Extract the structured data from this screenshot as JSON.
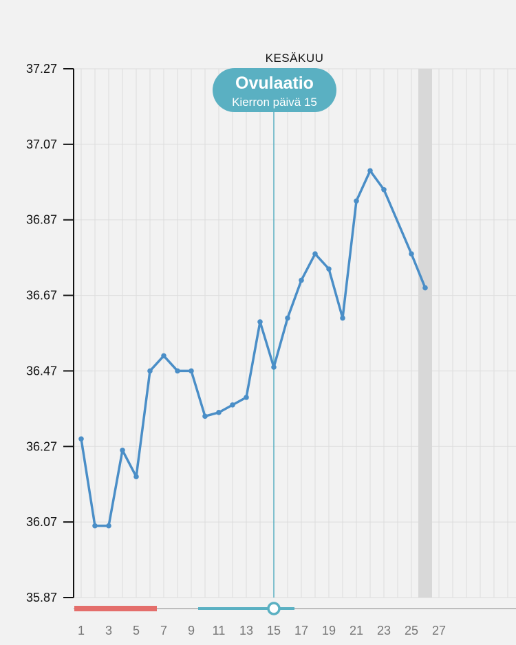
{
  "month_label": "KESÄKUU",
  "ovulation": {
    "title": "Ovulaatio",
    "subtitle": "Kierron päivä 15",
    "day": 15,
    "color": "#5ab0c2"
  },
  "colors": {
    "line": "#4a8ec7",
    "period": "#e46e6b",
    "fertile": "#5ab0c2",
    "today_band": "#d8d8d8",
    "background": "#f2f2f2"
  },
  "chart_data": {
    "type": "line",
    "x": [
      1,
      2,
      3,
      4,
      5,
      6,
      7,
      8,
      9,
      10,
      11,
      12,
      13,
      14,
      15,
      16,
      17,
      18,
      19,
      20,
      21,
      22,
      23,
      25,
      26
    ],
    "values": [
      36.29,
      36.06,
      36.06,
      36.26,
      36.19,
      36.47,
      36.51,
      36.47,
      36.47,
      36.35,
      36.36,
      36.38,
      36.4,
      36.6,
      36.48,
      36.61,
      36.71,
      36.78,
      36.74,
      36.61,
      36.92,
      37.0,
      36.95,
      36.78,
      36.69
    ],
    "ylim": [
      35.87,
      37.27
    ],
    "yticks": [
      "37.27",
      "37.07",
      "36.87",
      "36.67",
      "36.47",
      "36.27",
      "36.07",
      "35.87"
    ],
    "xticks": [
      "1",
      "3",
      "5",
      "7",
      "9",
      "11",
      "13",
      "15",
      "17",
      "19",
      "21",
      "23",
      "25",
      "27"
    ],
    "xlim": [
      0.5,
      32.1
    ],
    "grid": true,
    "highlight_day": 26,
    "period_days": [
      1,
      6
    ],
    "fertile_days": [
      10,
      16
    ],
    "ovulation_day": 15
  }
}
